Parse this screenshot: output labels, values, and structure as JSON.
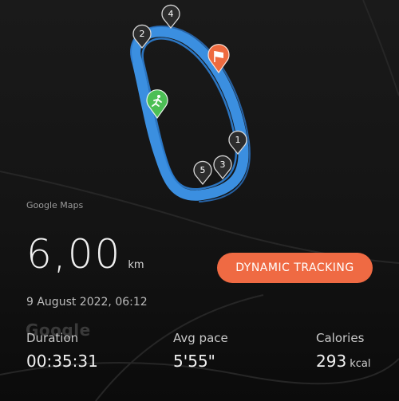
{
  "map": {
    "attribution": "Google Maps",
    "watermark": "Google",
    "colors": {
      "route": "#3b8fe0",
      "start": "#4cbf55",
      "finish": "#ee6a3f",
      "pin": "#2c2c2c"
    },
    "markers": [
      {
        "label": "1"
      },
      {
        "label": "2"
      },
      {
        "label": "3"
      },
      {
        "label": "4"
      },
      {
        "label": "5"
      }
    ]
  },
  "summary": {
    "distance_value": "6,00",
    "distance_unit": "km",
    "date": "9 August 2022, 06:12"
  },
  "tracking_button": {
    "label": "DYNAMIC TRACKING",
    "color": "#ef6a43"
  },
  "stats": {
    "duration": {
      "label": "Duration",
      "value": "00:35:31"
    },
    "pace": {
      "label": "Avg pace",
      "value": "5'55\""
    },
    "calories": {
      "label": "Calories",
      "value": "293",
      "unit": "kcal"
    }
  }
}
